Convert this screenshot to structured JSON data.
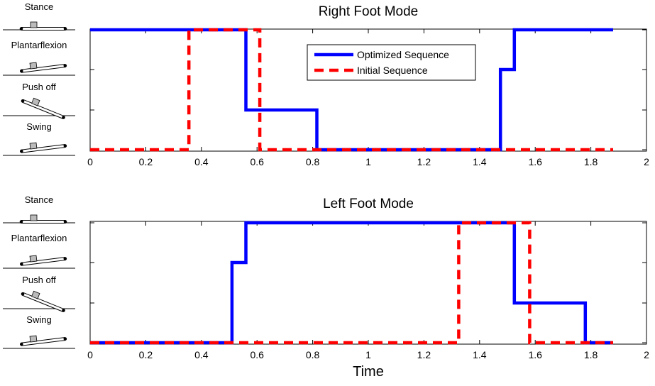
{
  "chart_data": [
    {
      "type": "line",
      "title": "Right Foot Mode",
      "xlabel": "",
      "xlim": [
        0,
        2
      ],
      "xticks": [
        "0",
        "0.2",
        "0.4",
        "0.6",
        "0.8",
        "1",
        "1.2",
        "1.4",
        "1.6",
        "1.8",
        "2"
      ],
      "y_categories": [
        "Stance",
        "Plantarflexion",
        "Push off",
        "Swing"
      ],
      "legend": {
        "position": "top-center",
        "entries": [
          "Optimized Sequence",
          "Initial Sequence"
        ]
      },
      "series": [
        {
          "name": "Optimized Sequence",
          "style": "solid",
          "color": "#0000ff",
          "x": [
            0,
            0.56,
            0.56,
            0.815,
            0.815,
            1.475,
            1.475,
            1.525,
            1.525,
            1.88
          ],
          "y": [
            "Stance",
            "Stance",
            "Push off",
            "Push off",
            "Swing",
            "Swing",
            "Plantarflexion",
            "Plantarflexion",
            "Stance",
            "Stance"
          ]
        },
        {
          "name": "Initial Sequence",
          "style": "dashed",
          "color": "#ff0000",
          "x": [
            0,
            0.355,
            0.355,
            0.61,
            0.61,
            1.88
          ],
          "y": [
            "Swing",
            "Swing",
            "Stance",
            "Stance",
            "Swing",
            "Swing"
          ]
        }
      ]
    },
    {
      "type": "line",
      "title": "Left Foot Mode",
      "xlabel": "Time",
      "xlim": [
        0,
        2
      ],
      "xticks": [
        "0",
        "0.2",
        "0.4",
        "0.6",
        "0.8",
        "1",
        "1.2",
        "1.4",
        "1.6",
        "1.8",
        "2"
      ],
      "y_categories": [
        "Stance",
        "Plantarflexion",
        "Push off",
        "Swing"
      ],
      "series": [
        {
          "name": "Optimized Sequence",
          "style": "solid",
          "color": "#0000ff",
          "x": [
            0,
            0.51,
            0.51,
            0.56,
            0.56,
            1.525,
            1.525,
            1.78,
            1.78,
            1.88
          ],
          "y": [
            "Swing",
            "Swing",
            "Plantarflexion",
            "Plantarflexion",
            "Stance",
            "Stance",
            "Push off",
            "Push off",
            "Swing",
            "Swing"
          ]
        },
        {
          "name": "Initial Sequence",
          "style": "dashed",
          "color": "#ff0000",
          "x": [
            0,
            1.325,
            1.325,
            1.58,
            1.58,
            1.88
          ],
          "y": [
            "Swing",
            "Swing",
            "Stance",
            "Stance",
            "Swing",
            "Swing"
          ]
        }
      ]
    }
  ]
}
